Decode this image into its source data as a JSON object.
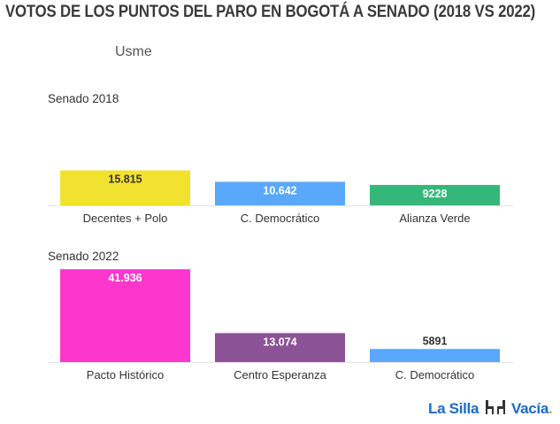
{
  "header": {
    "title": "VOTOS DE LOS PUNTOS DEL PARO EN BOGOTÁ A SENADO (2018 VS 2022)",
    "subtitle": "Usme"
  },
  "branding": {
    "logo_part1": "La Silla",
    "logo_part2": "Vacía",
    "logo_dot": ".",
    "logo_icon": "chairs-icon"
  },
  "chart_data": [
    {
      "type": "bar",
      "title": "Senado 2018",
      "categories": [
        "Decentes + Polo",
        "C. Democrático",
        "Alianza Verde"
      ],
      "values": [
        15815,
        10642,
        9228
      ],
      "labels": [
        "15.815",
        "10.642",
        "9228"
      ],
      "colors": [
        "#f2e230",
        "#58a8fb",
        "#35b779"
      ],
      "label_colors": [
        "#333333",
        "#ffffff",
        "#ffffff"
      ],
      "ylim": [
        0,
        42000
      ],
      "grid": false,
      "legend": "none"
    },
    {
      "type": "bar",
      "title": "Senado 2022",
      "categories": [
        "Pacto Histórico",
        "Centro Esperanza",
        "C. Democrático"
      ],
      "values": [
        41936,
        13074,
        5891
      ],
      "labels": [
        "41.936",
        "13.074",
        "5891"
      ],
      "colors": [
        "#fd36ce",
        "#8c5296",
        "#58a8fb"
      ],
      "label_colors": [
        "#ffffff",
        "#ffffff",
        "#333333"
      ],
      "ylim": [
        0,
        42000
      ],
      "grid": false,
      "legend": "none"
    }
  ]
}
